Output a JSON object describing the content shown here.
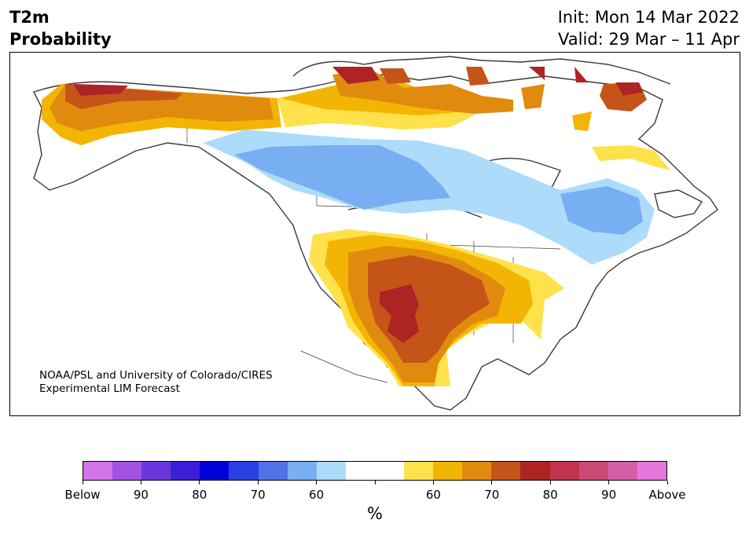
{
  "header": {
    "title_line1": "T2m",
    "title_line2": "Probability",
    "init": "Init: Mon 14 Mar 2022",
    "valid": "Valid: 29 Mar – 11 Apr"
  },
  "map": {
    "credit_line1": "NOAA/PSL and University of Colorado/CIRES",
    "credit_line2": "Experimental LIM Forecast",
    "regions": [
      {
        "name": "alaska-above",
        "category": "Above 70-75"
      },
      {
        "name": "canada-arctic-above",
        "category": "Above 60-80"
      },
      {
        "name": "west-canada-below",
        "category": "Below 60-70"
      },
      {
        "name": "northern-plains-below",
        "category": "Below 60-70"
      },
      {
        "name": "great-lakes-below",
        "category": "Below 60-65"
      },
      {
        "name": "quebec-below",
        "category": "Below 60-70"
      },
      {
        "name": "southern-us-above",
        "category": "Above 60-80"
      },
      {
        "name": "labrador-above",
        "category": "Above 60"
      }
    ]
  },
  "colorbar": {
    "unit": "%",
    "colors": [
      "#d374ea",
      "#a452e3",
      "#6b37dc",
      "#3b1fd6",
      "#0000d9",
      "#2a3fe0",
      "#4f73e6",
      "#78aff2",
      "#addcfb",
      "#ffffff",
      "#ffffff",
      "#ffe14b",
      "#f3b504",
      "#e08b0e",
      "#c55419",
      "#ae2323",
      "#c0344d",
      "#cc4b74",
      "#d65ea6",
      "#e677dd"
    ],
    "labels": [
      "Below",
      "90",
      "80",
      "70",
      "60",
      "60",
      "70",
      "80",
      "90",
      "Above"
    ]
  }
}
